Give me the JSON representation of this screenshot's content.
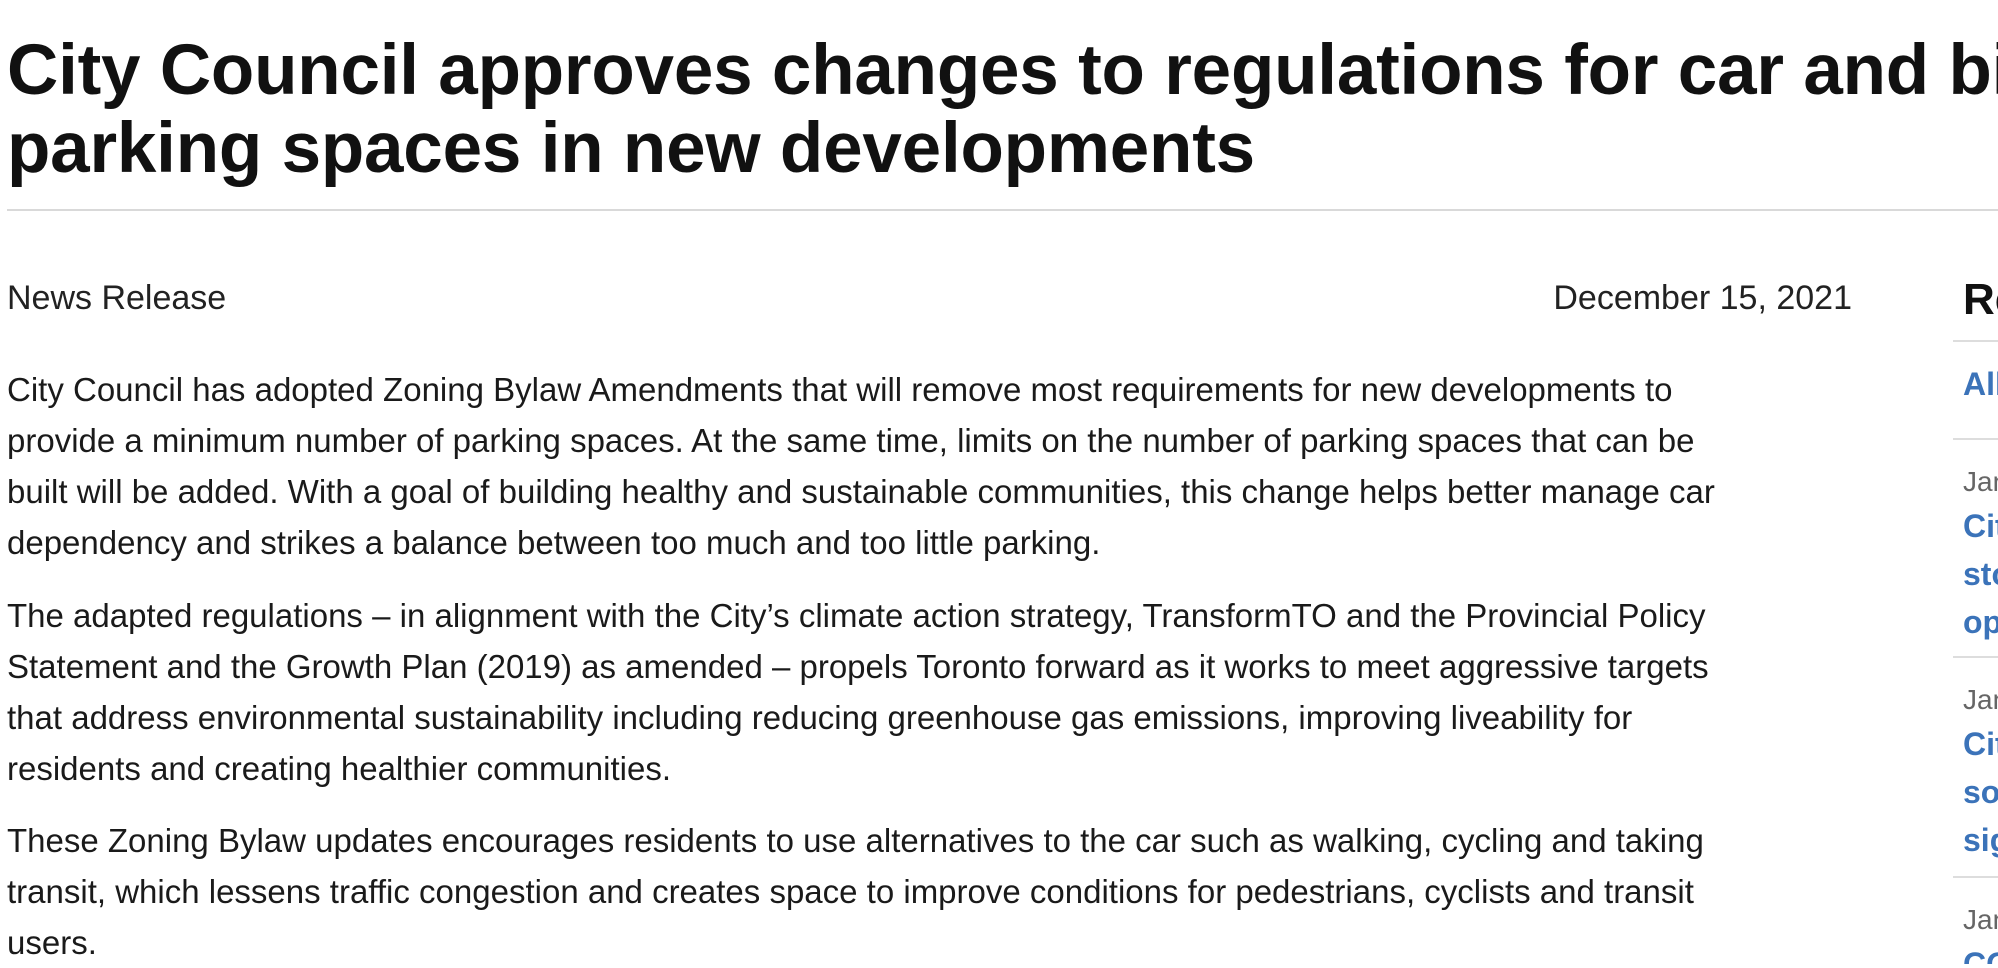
{
  "article": {
    "title_lines": [
      "City Council approves changes to regulations for car and bike",
      "parking spaces in new developments"
    ],
    "release_type": "News Release",
    "date": "December 15, 2021",
    "paragraphs": [
      {
        "lines": [
          "City Council has adopted Zoning Bylaw Amendments that will remove most requirements for new developments to",
          "provide a minimum number of parking spaces. At the same time, limits on the number of parking spaces that can be",
          "built will be added. With a goal of building healthy and sustainable communities, this change helps better manage car",
          "dependency and strikes a balance between too much and too little parking."
        ]
      },
      {
        "lines": [
          "The adapted regulations – in alignment with the City’s climate action strategy, TransformTO and the Provincial Policy",
          "Statement and the Growth Plan (2019) as amended – propels Toronto forward as it works to meet aggressive targets",
          "that address environmental sustainability including reducing greenhouse gas emissions, improving liveability for",
          "residents and creating healthier communities."
        ]
      },
      {
        "lines": [
          "These Zoning Bylaw updates encourages residents to use alternatives to the car such as walking, cycling and taking",
          "transit, which lessens traffic congestion and creates space to improve conditions for pedestrians, cyclists and transit",
          "users."
        ]
      }
    ]
  },
  "sidebar": {
    "heading": "Re",
    "all_link": "All",
    "items": [
      {
        "date": "Jan",
        "title_lines": [
          "Cit",
          "sto",
          "op"
        ]
      },
      {
        "date": "Jan",
        "title_lines": [
          "Cit",
          "so",
          "sig"
        ]
      },
      {
        "date": "Jan",
        "title_lines": [
          "CO"
        ]
      }
    ]
  },
  "colors": {
    "link": "#3b73b9",
    "rule": "#d9d9d9",
    "muted": "#666666"
  }
}
